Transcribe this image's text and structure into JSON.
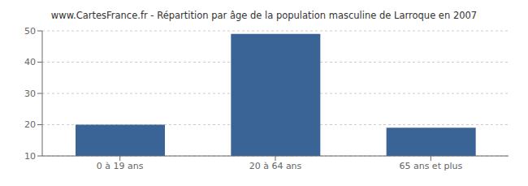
{
  "chart_data": {
    "type": "bar",
    "title": "www.CartesFrance.fr - Répartition par âge de la population masculine de Larroque en 2007",
    "categories": [
      "0 à 19 ans",
      "20 à 64 ans",
      "65 ans et plus"
    ],
    "values": [
      20,
      49,
      19
    ],
    "color": "#3a6496",
    "ylim": [
      10,
      50
    ],
    "yticks": [
      10,
      20,
      30,
      40,
      50
    ],
    "grid": true
  }
}
